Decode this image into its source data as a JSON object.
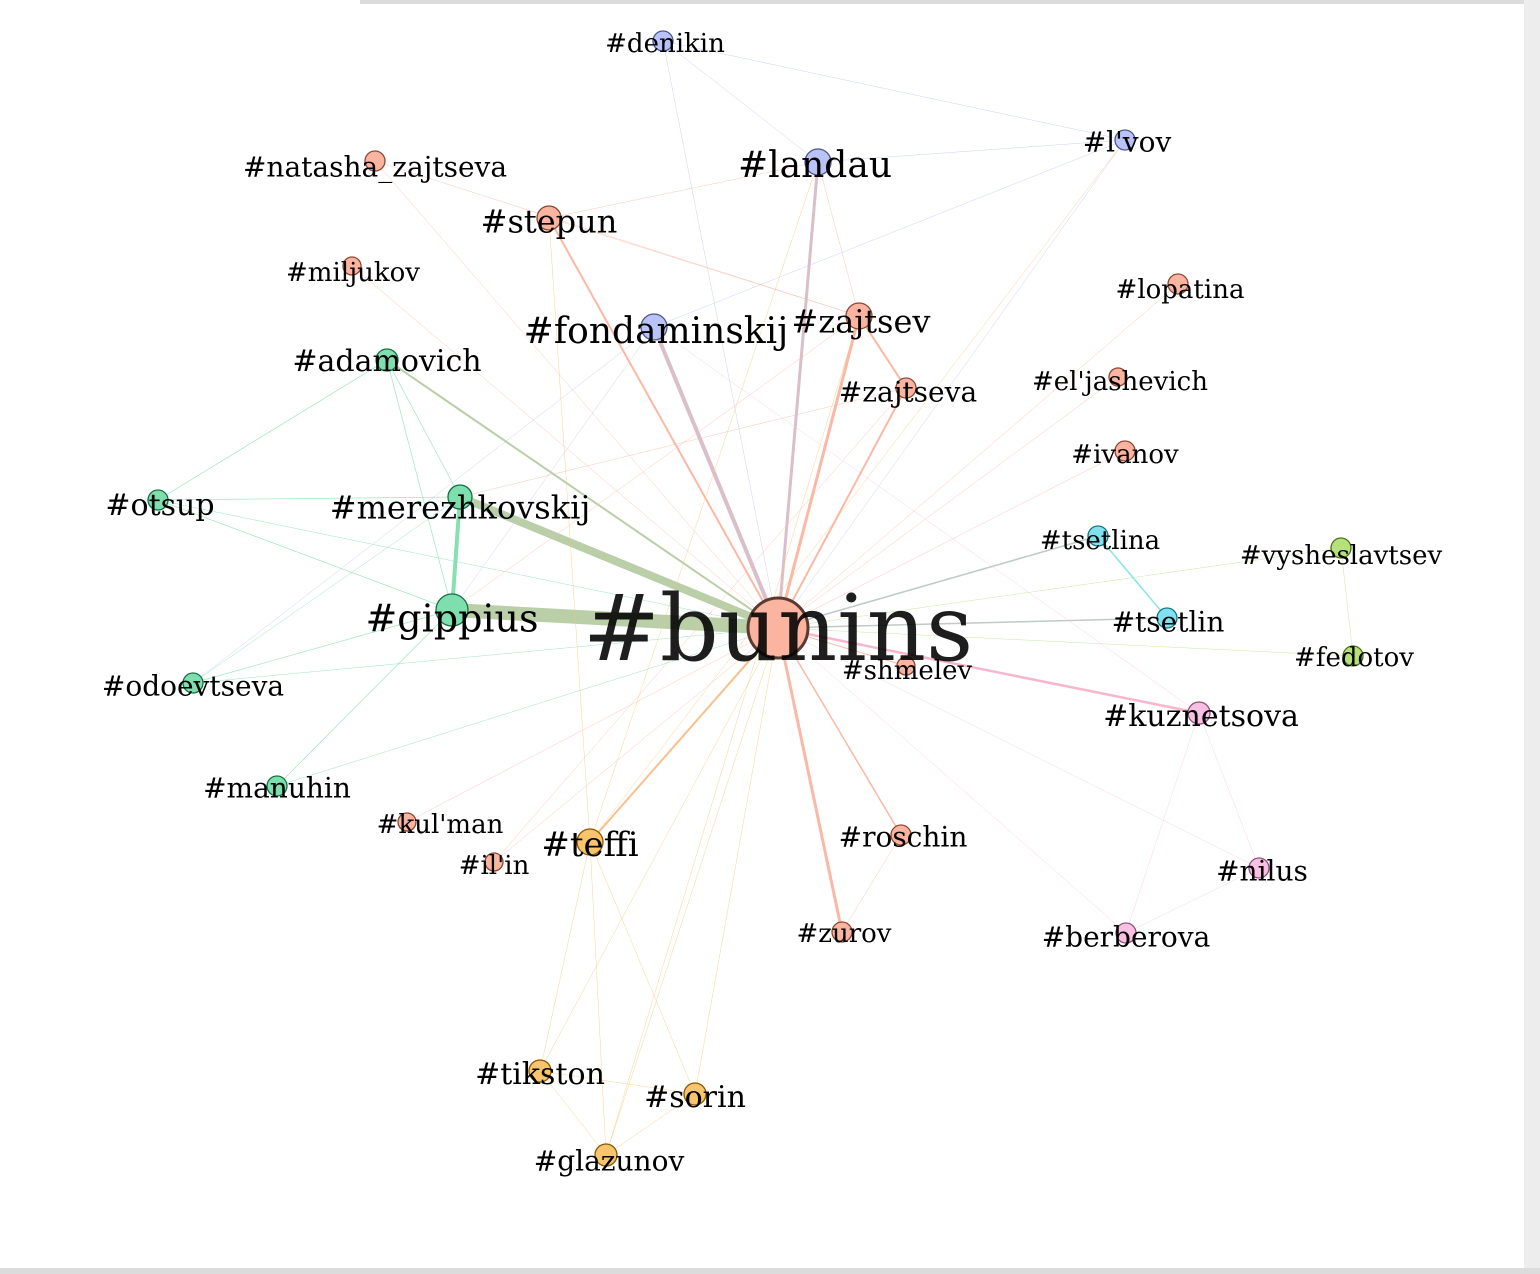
{
  "graph": {
    "nodes": [
      {
        "id": "bunins",
        "label": "#bunins",
        "group": "salmon"
      },
      {
        "id": "gippius",
        "label": "#gippius",
        "group": "green"
      },
      {
        "id": "merezhkovskij",
        "label": "#merezhkovskij",
        "group": "green"
      },
      {
        "id": "adamovich",
        "label": "#adamovich",
        "group": "green"
      },
      {
        "id": "otsup",
        "label": "#otsup",
        "group": "green"
      },
      {
        "id": "odoevtseva",
        "label": "#odoevtseva",
        "group": "green"
      },
      {
        "id": "manuhin",
        "label": "#manuhin",
        "group": "green"
      },
      {
        "id": "denikin",
        "label": "#denikin",
        "group": "blue"
      },
      {
        "id": "landau",
        "label": "#landau",
        "group": "blue"
      },
      {
        "id": "lvov",
        "label": "#l'vov",
        "group": "blue"
      },
      {
        "id": "fondaminskij",
        "label": "#fondaminskij",
        "group": "blue"
      },
      {
        "id": "natasha_zajtseva",
        "label": "#natasha_zajtseva",
        "group": "salmon"
      },
      {
        "id": "stepun",
        "label": "#stepun",
        "group": "salmon"
      },
      {
        "id": "miljukov",
        "label": "#miljukov",
        "group": "salmon"
      },
      {
        "id": "zajtsev",
        "label": "#zajtsev",
        "group": "salmon"
      },
      {
        "id": "zajtseva",
        "label": "#zajtseva",
        "group": "salmon"
      },
      {
        "id": "lopatina",
        "label": "#lopatina",
        "group": "salmon"
      },
      {
        "id": "eljashevich",
        "label": "#el'jashevich",
        "group": "salmon"
      },
      {
        "id": "ivanov",
        "label": "#ivanov",
        "group": "salmon"
      },
      {
        "id": "shmelev",
        "label": "#shmelev",
        "group": "salmon"
      },
      {
        "id": "roschin",
        "label": "#roschin",
        "group": "salmon"
      },
      {
        "id": "zurov",
        "label": "#zurov",
        "group": "salmon"
      },
      {
        "id": "kulman",
        "label": "#kul'man",
        "group": "salmon"
      },
      {
        "id": "ilin",
        "label": "#il'in",
        "group": "salmon"
      },
      {
        "id": "tsetlina",
        "label": "#tsetlina",
        "group": "cyan"
      },
      {
        "id": "tsetlin",
        "label": "#tsetlin",
        "group": "cyan"
      },
      {
        "id": "vysheslavtsev",
        "label": "#vysheslavtsev",
        "group": "lime"
      },
      {
        "id": "fedotov",
        "label": "#fedotov",
        "group": "lime"
      },
      {
        "id": "kuznetsova",
        "label": "#kuznetsova",
        "group": "pink"
      },
      {
        "id": "nilus",
        "label": "#nilus",
        "group": "pink"
      },
      {
        "id": "berberova",
        "label": "#berberova",
        "group": "pink"
      },
      {
        "id": "teffi",
        "label": "#teffi",
        "group": "orange"
      },
      {
        "id": "tikston",
        "label": "#tikston",
        "group": "orange"
      },
      {
        "id": "sorin",
        "label": "#sorin",
        "group": "orange"
      },
      {
        "id": "glazunov",
        "label": "#glazunov",
        "group": "orange"
      }
    ],
    "edges": [
      {
        "source": "bunins",
        "target": "gippius",
        "weight": 14
      },
      {
        "source": "bunins",
        "target": "merezhkovskij",
        "weight": 8
      },
      {
        "source": "bunins",
        "target": "adamovich",
        "weight": 2
      },
      {
        "source": "bunins",
        "target": "fondaminskij",
        "weight": 4
      },
      {
        "source": "bunins",
        "target": "landau",
        "weight": 3
      },
      {
        "source": "bunins",
        "target": "zajtsev",
        "weight": 3
      },
      {
        "source": "bunins",
        "target": "zajtseva",
        "weight": 2
      },
      {
        "source": "bunins",
        "target": "stepun",
        "weight": 2
      },
      {
        "source": "bunins",
        "target": "zurov",
        "weight": 3
      },
      {
        "source": "bunins",
        "target": "roschin",
        "weight": 1.5
      },
      {
        "source": "bunins",
        "target": "teffi",
        "weight": 2
      },
      {
        "source": "bunins",
        "target": "kuznetsova",
        "weight": 2.5
      },
      {
        "source": "bunins",
        "target": "tsetlina",
        "weight": 1.5
      },
      {
        "source": "bunins",
        "target": "tsetlin",
        "weight": 1.5
      },
      {
        "source": "bunins",
        "target": "shmelev",
        "weight": 1
      },
      {
        "source": "bunins",
        "target": "natasha_zajtseva",
        "weight": 0.5
      },
      {
        "source": "bunins",
        "target": "miljukov",
        "weight": 0.5
      },
      {
        "source": "bunins",
        "target": "denikin",
        "weight": 0.5
      },
      {
        "source": "bunins",
        "target": "lvov",
        "weight": 0.5
      },
      {
        "source": "bunins",
        "target": "lopatina",
        "weight": 0.5
      },
      {
        "source": "bunins",
        "target": "eljashevich",
        "weight": 0.5
      },
      {
        "source": "bunins",
        "target": "ivanov",
        "weight": 0.5
      },
      {
        "source": "bunins",
        "target": "vysheslavtsev",
        "weight": 0.5
      },
      {
        "source": "bunins",
        "target": "fedotov",
        "weight": 0.5
      },
      {
        "source": "bunins",
        "target": "nilus",
        "weight": 0.5
      },
      {
        "source": "bunins",
        "target": "berberova",
        "weight": 0.5
      },
      {
        "source": "bunins",
        "target": "otsup",
        "weight": 0.5
      },
      {
        "source": "bunins",
        "target": "odoevtseva",
        "weight": 0.5
      },
      {
        "source": "bunins",
        "target": "manuhin",
        "weight": 0.5
      },
      {
        "source": "bunins",
        "target": "kulman",
        "weight": 0.5
      },
      {
        "source": "bunins",
        "target": "ilin",
        "weight": 0.5
      },
      {
        "source": "bunins",
        "target": "tikston",
        "weight": 0.5
      },
      {
        "source": "bunins",
        "target": "sorin",
        "weight": 0.5
      },
      {
        "source": "bunins",
        "target": "glazunov",
        "weight": 0.5
      },
      {
        "source": "gippius",
        "target": "merezhkovskij",
        "weight": 4
      },
      {
        "source": "gippius",
        "target": "adamovich",
        "weight": 0.7
      },
      {
        "source": "gippius",
        "target": "otsup",
        "weight": 0.7
      },
      {
        "source": "gippius",
        "target": "odoevtseva",
        "weight": 0.7
      },
      {
        "source": "gippius",
        "target": "manuhin",
        "weight": 0.7
      },
      {
        "source": "gippius",
        "target": "fondaminskij",
        "weight": 0.5
      },
      {
        "source": "gippius",
        "target": "zajtsev",
        "weight": 0.5
      },
      {
        "source": "merezhkovskij",
        "target": "adamovich",
        "weight": 0.7
      },
      {
        "source": "merezhkovskij",
        "target": "otsup",
        "weight": 0.7
      },
      {
        "source": "merezhkovskij",
        "target": "odoevtseva",
        "weight": 0.5
      },
      {
        "source": "merezhkovskij",
        "target": "zajtseva",
        "weight": 0.5
      },
      {
        "source": "adamovich",
        "target": "otsup",
        "weight": 0.7
      },
      {
        "source": "odoevtseva",
        "target": "fondaminskij",
        "weight": 0.5
      },
      {
        "source": "fondaminskij",
        "target": "lvov",
        "weight": 0.5
      },
      {
        "source": "fondaminskij",
        "target": "kuznetsova",
        "weight": 0.5
      },
      {
        "source": "landau",
        "target": "lvov",
        "weight": 0.5
      },
      {
        "source": "landau",
        "target": "denikin",
        "weight": 0.5
      },
      {
        "source": "landau",
        "target": "zajtsev",
        "weight": 0.5
      },
      {
        "source": "landau",
        "target": "stepun",
        "weight": 0.5
      },
      {
        "source": "landau",
        "target": "teffi",
        "weight": 0.5
      },
      {
        "source": "denikin",
        "target": "lvov",
        "weight": 0.5
      },
      {
        "source": "natasha_zajtseva",
        "target": "zajtsev",
        "weight": 0.5
      },
      {
        "source": "stepun",
        "target": "zajtsev",
        "weight": 0.5
      },
      {
        "source": "stepun",
        "target": "teffi",
        "weight": 0.5
      },
      {
        "source": "zajtsev",
        "target": "zajtseva",
        "weight": 2
      },
      {
        "source": "zajtsev",
        "target": "glazunov",
        "weight": 0.5
      },
      {
        "source": "zajtseva",
        "target": "ilin",
        "weight": 0.5
      },
      {
        "source": "lvov",
        "target": "teffi",
        "weight": 0.5
      },
      {
        "source": "tsetlina",
        "target": "tsetlin",
        "weight": 1.5
      },
      {
        "source": "vysheslavtsev",
        "target": "fedotov",
        "weight": 0.5
      },
      {
        "source": "kuznetsova",
        "target": "berberova",
        "weight": 0.5
      },
      {
        "source": "kuznetsova",
        "target": "nilus",
        "weight": 0.5
      },
      {
        "source": "berberova",
        "target": "nilus",
        "weight": 0.5
      },
      {
        "source": "roschin",
        "target": "zurov",
        "weight": 0.5
      },
      {
        "source": "teffi",
        "target": "tikston",
        "weight": 0.5
      },
      {
        "source": "teffi",
        "target": "sorin",
        "weight": 0.5
      },
      {
        "source": "teffi",
        "target": "glazunov",
        "weight": 0.5
      },
      {
        "source": "tikston",
        "target": "sorin",
        "weight": 0.5
      },
      {
        "source": "tikston",
        "target": "glazunov",
        "weight": 0.5
      },
      {
        "source": "sorin",
        "target": "glazunov",
        "weight": 0.5
      }
    ],
    "group_colors": {
      "salmon": "#fbb4a0",
      "green": "#7fdeae",
      "blue": "#b9c3f7",
      "cyan": "#82e1ee",
      "lime": "#b5e07c",
      "pink": "#f9c0e3",
      "orange": "#f8c46e"
    },
    "edge_colors": {
      "bunins-gippius": "#b6cba3",
      "bunins-merezhkovskij": "#b6cba3",
      "bunins-adamovich": "#b6cba3",
      "bunins-fondaminskij": "#d8bcc8",
      "bunins-landau": "#d8bcc8",
      "bunins-kuznetsova": "#f5b3c8",
      "bunins-tsetlina": "#bcc8c4",
      "bunins-tsetlin": "#bcc8c4",
      "bunins-teffi": "#f8bd86",
      "gippius-merezhkovskij": "#7fdeae",
      "tsetlina-tsetlin": "#82e1ee"
    }
  }
}
